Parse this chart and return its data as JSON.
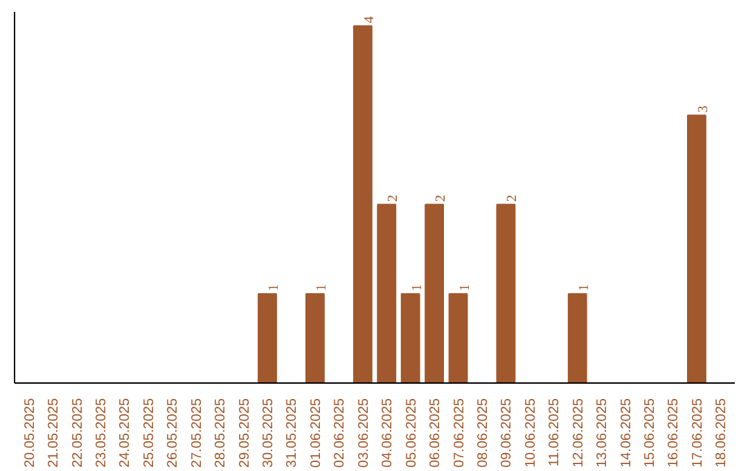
{
  "chart_data": {
    "type": "bar",
    "categories": [
      "20.05.2025",
      "21.05.2025",
      "22.05.2025",
      "23.05.2025",
      "24.05.2025",
      "25.05.2025",
      "26.05.2025",
      "27.05.2025",
      "28.05.2025",
      "29.05.2025",
      "30.05.2025",
      "31.05.2025",
      "01.06.2025",
      "02.06.2025",
      "03.06.2025",
      "04.06.2025",
      "05.06.2025",
      "06.06.2025",
      "07.06.2025",
      "08.06.2025",
      "09.06.2025",
      "10.06.2025",
      "11.06.2025",
      "12.06.2025",
      "13.06.2025",
      "14.06.2025",
      "15.06.2025",
      "16.06.2025",
      "17.06.2025",
      "18.06.2025"
    ],
    "values": [
      0,
      0,
      0,
      0,
      0,
      0,
      0,
      0,
      0,
      0,
      1,
      0,
      1,
      0,
      4,
      2,
      1,
      2,
      1,
      0,
      2,
      0,
      0,
      1,
      0,
      0,
      0,
      0,
      3,
      0
    ],
    "value_labels": [
      null,
      null,
      null,
      null,
      null,
      null,
      null,
      null,
      null,
      null,
      "1",
      null,
      "1",
      null,
      "4",
      "2",
      "1",
      "2",
      "1",
      null,
      "2",
      null,
      null,
      "1",
      null,
      null,
      null,
      null,
      "3",
      null
    ],
    "color": "#a0582c",
    "grid": false,
    "tick_labels": "x"
  }
}
